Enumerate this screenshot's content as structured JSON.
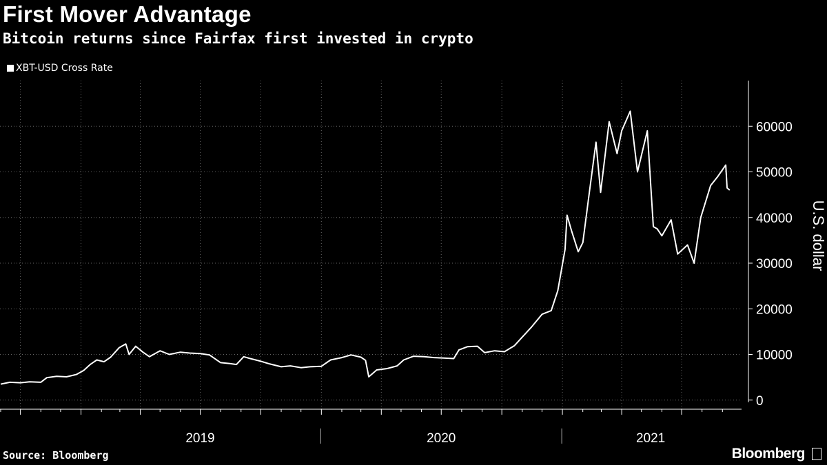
{
  "chart_data": {
    "type": "line",
    "title": "First Mover Advantage",
    "subtitle": "Bitcoin returns since Fairfax first invested in crypto",
    "series": [
      {
        "name": "XBT-USD Cross Rate",
        "color": "#ffffff",
        "points": [
          [
            "2018-09-01",
            3500
          ],
          [
            "2018-09-15",
            3900
          ],
          [
            "2018-10-01",
            3800
          ],
          [
            "2018-10-15",
            4000
          ],
          [
            "2018-11-01",
            3900
          ],
          [
            "2018-11-10",
            4900
          ],
          [
            "2018-11-25",
            5200
          ],
          [
            "2018-12-10",
            5100
          ],
          [
            "2018-12-25",
            5600
          ],
          [
            "2019-01-05",
            6500
          ],
          [
            "2019-01-15",
            7800
          ],
          [
            "2019-01-25",
            8800
          ],
          [
            "2019-02-05",
            8400
          ],
          [
            "2019-02-15",
            9400
          ],
          [
            "2019-02-28",
            11500
          ],
          [
            "2019-03-10",
            12300
          ],
          [
            "2019-03-15",
            10000
          ],
          [
            "2019-03-25",
            11800
          ],
          [
            "2019-04-05",
            10500
          ],
          [
            "2019-04-15",
            9500
          ],
          [
            "2019-05-01",
            10800
          ],
          [
            "2019-05-15",
            10000
          ],
          [
            "2019-06-01",
            10500
          ],
          [
            "2019-06-15",
            10300
          ],
          [
            "2019-07-01",
            10200
          ],
          [
            "2019-07-15",
            9900
          ],
          [
            "2019-08-01",
            8200
          ],
          [
            "2019-08-15",
            8000
          ],
          [
            "2019-08-25",
            7800
          ],
          [
            "2019-09-05",
            9500
          ],
          [
            "2019-09-15",
            9100
          ],
          [
            "2019-10-01",
            8500
          ],
          [
            "2019-10-15",
            7900
          ],
          [
            "2019-11-01",
            7300
          ],
          [
            "2019-11-15",
            7500
          ],
          [
            "2019-12-01",
            7100
          ],
          [
            "2019-12-15",
            7300
          ],
          [
            "2020-01-01",
            7400
          ],
          [
            "2020-01-15",
            8800
          ],
          [
            "2020-02-01",
            9300
          ],
          [
            "2020-02-15",
            9900
          ],
          [
            "2020-03-01",
            9400
          ],
          [
            "2020-03-08",
            8700
          ],
          [
            "2020-03-13",
            5100
          ],
          [
            "2020-03-25",
            6600
          ],
          [
            "2020-04-10",
            6900
          ],
          [
            "2020-04-25",
            7500
          ],
          [
            "2020-05-05",
            8800
          ],
          [
            "2020-05-20",
            9600
          ],
          [
            "2020-06-05",
            9500
          ],
          [
            "2020-06-20",
            9300
          ],
          [
            "2020-07-05",
            9200
          ],
          [
            "2020-07-20",
            9100
          ],
          [
            "2020-07-28",
            11000
          ],
          [
            "2020-08-10",
            11700
          ],
          [
            "2020-08-25",
            11800
          ],
          [
            "2020-09-05",
            10400
          ],
          [
            "2020-09-20",
            10800
          ],
          [
            "2020-10-05",
            10600
          ],
          [
            "2020-10-20",
            11900
          ],
          [
            "2020-11-01",
            13800
          ],
          [
            "2020-11-15",
            16000
          ],
          [
            "2020-12-01",
            18800
          ],
          [
            "2020-12-15",
            19600
          ],
          [
            "2020-12-25",
            24000
          ],
          [
            "2021-01-05",
            33000
          ],
          [
            "2021-01-08",
            40500
          ],
          [
            "2021-01-15",
            37000
          ],
          [
            "2021-01-25",
            32500
          ],
          [
            "2021-02-01",
            34500
          ],
          [
            "2021-02-10",
            44500
          ],
          [
            "2021-02-21",
            56500
          ],
          [
            "2021-02-28",
            45500
          ],
          [
            "2021-03-13",
            61000
          ],
          [
            "2021-03-25",
            54000
          ],
          [
            "2021-04-01",
            59000
          ],
          [
            "2021-04-14",
            63300
          ],
          [
            "2021-04-25",
            50000
          ],
          [
            "2021-05-10",
            59000
          ],
          [
            "2021-05-19",
            38000
          ],
          [
            "2021-05-25",
            37500
          ],
          [
            "2021-06-01",
            36000
          ],
          [
            "2021-06-15",
            39500
          ],
          [
            "2021-06-25",
            32000
          ],
          [
            "2021-07-10",
            34000
          ],
          [
            "2021-07-20",
            30000
          ],
          [
            "2021-07-30",
            40000
          ],
          [
            "2021-08-14",
            47000
          ],
          [
            "2021-08-25",
            49000
          ],
          [
            "2021-09-06",
            51500
          ],
          [
            "2021-09-08",
            46500
          ],
          [
            "2021-09-12",
            46000
          ]
        ]
      }
    ],
    "x_axis": {
      "type": "date",
      "range": [
        "2018-08-31",
        "2021-09-30"
      ],
      "tick_labels": [
        {
          "label": "2019",
          "date": "2019-07-01"
        },
        {
          "label": "2020",
          "date": "2020-07-01"
        },
        {
          "label": "2021",
          "date": "2021-05-15"
        }
      ],
      "year_separators": [
        "2019-12-31",
        "2020-12-31"
      ]
    },
    "y_axis": {
      "label": "U.S. dollar",
      "range": [
        -2000,
        70000
      ],
      "ticks": [
        0,
        10000,
        20000,
        30000,
        40000,
        50000,
        60000
      ],
      "position": "right"
    },
    "grid": true,
    "legend_position": "top-left"
  },
  "source": "Source: Bloomberg",
  "brand": "Bloomberg",
  "colors": {
    "background": "#000000",
    "line": "#ffffff",
    "grid": "#666666"
  }
}
